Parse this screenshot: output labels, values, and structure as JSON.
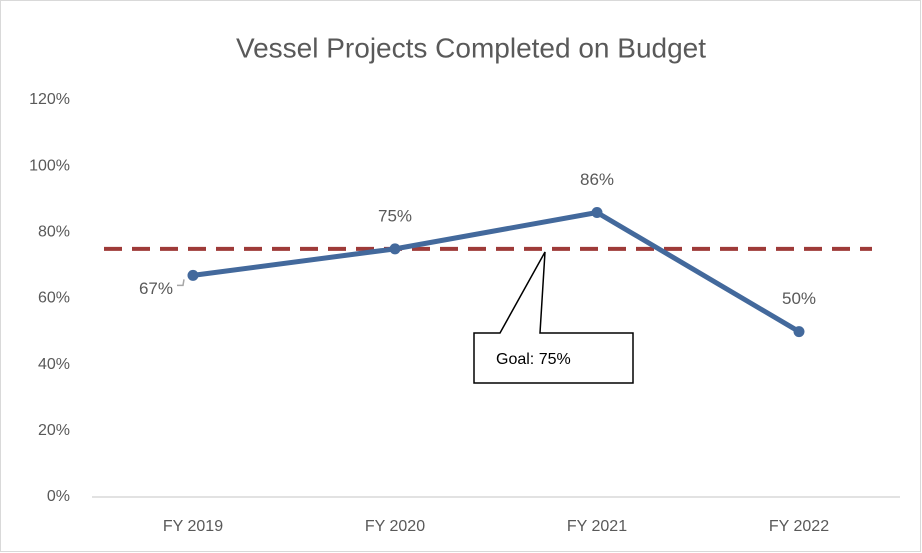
{
  "chart_data": {
    "type": "line",
    "title": "Vessel Projects Completed on Budget",
    "categories": [
      "FY 2019",
      "FY 2020",
      "FY 2021",
      "FY 2022"
    ],
    "values": [
      67,
      75,
      86,
      50
    ],
    "value_labels": [
      "67%",
      "75%",
      "86%",
      "50%"
    ],
    "color": "#43699c",
    "ylim": [
      0,
      120
    ],
    "yticks": [
      {
        "value": 0,
        "label": "0%"
      },
      {
        "value": 20,
        "label": "20%"
      },
      {
        "value": 40,
        "label": "40%"
      },
      {
        "value": 60,
        "label": "60%"
      },
      {
        "value": 80,
        "label": "80%"
      },
      {
        "value": 100,
        "label": "100%"
      },
      {
        "value": 120,
        "label": "120%"
      }
    ],
    "grid": false,
    "goal": {
      "value": 75,
      "label": "Goal: 75%",
      "color": "#9e3a38"
    }
  }
}
